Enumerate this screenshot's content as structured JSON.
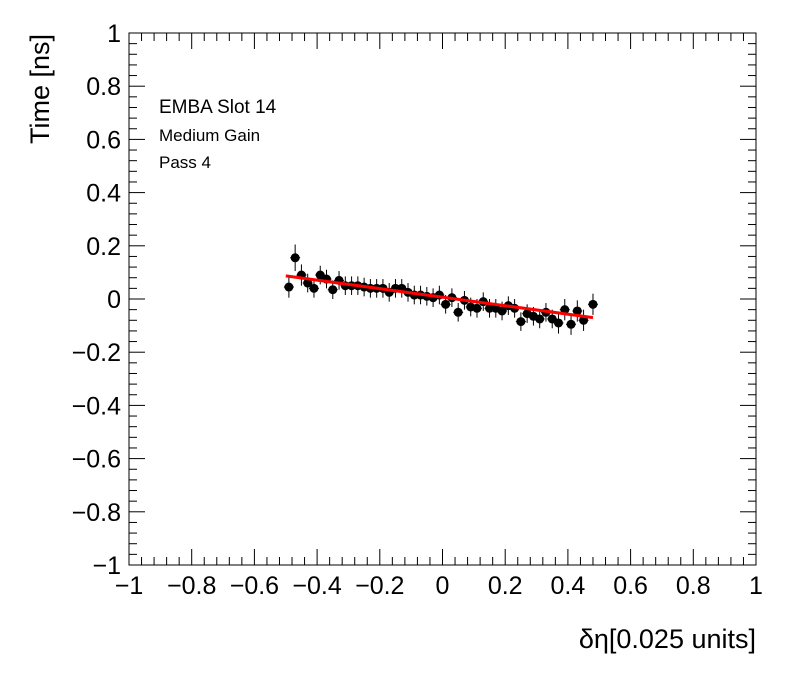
{
  "chart_data": {
    "type": "scatter",
    "annotations": [
      "EMBA Slot 14",
      "Medium Gain",
      "Pass 4"
    ],
    "xlabel": "δη[0.025 units]",
    "ylabel": "Time [ns]",
    "xlim": [
      -1,
      1
    ],
    "ylim": [
      -1,
      1
    ],
    "x_ticks": [
      "−1",
      "−0.8",
      "−0.6",
      "−0.4",
      "−0.2",
      "0",
      "0.2",
      "0.4",
      "0.6",
      "0.8",
      "1"
    ],
    "y_ticks": [
      "−1",
      "−0.8",
      "−0.6",
      "−0.4",
      "−0.2",
      "0",
      "0.2",
      "0.4",
      "0.6",
      "0.8",
      "1"
    ],
    "grid": false,
    "series": [
      {
        "marker_color": "#000000",
        "points": [
          {
            "x": -0.49,
            "y": 0.045,
            "err": 0.04
          },
          {
            "x": -0.47,
            "y": 0.155,
            "err": 0.05
          },
          {
            "x": -0.45,
            "y": 0.09,
            "err": 0.04
          },
          {
            "x": -0.43,
            "y": 0.06,
            "err": 0.035
          },
          {
            "x": -0.41,
            "y": 0.04,
            "err": 0.035
          },
          {
            "x": -0.39,
            "y": 0.09,
            "err": 0.035
          },
          {
            "x": -0.37,
            "y": 0.075,
            "err": 0.035
          },
          {
            "x": -0.35,
            "y": 0.035,
            "err": 0.035
          },
          {
            "x": -0.33,
            "y": 0.07,
            "err": 0.035
          },
          {
            "x": -0.31,
            "y": 0.05,
            "err": 0.035
          },
          {
            "x": -0.29,
            "y": 0.05,
            "err": 0.035
          },
          {
            "x": -0.27,
            "y": 0.05,
            "err": 0.035
          },
          {
            "x": -0.25,
            "y": 0.045,
            "err": 0.035
          },
          {
            "x": -0.23,
            "y": 0.04,
            "err": 0.035
          },
          {
            "x": -0.21,
            "y": 0.04,
            "err": 0.035
          },
          {
            "x": -0.19,
            "y": 0.04,
            "err": 0.035
          },
          {
            "x": -0.17,
            "y": 0.025,
            "err": 0.035
          },
          {
            "x": -0.15,
            "y": 0.04,
            "err": 0.035
          },
          {
            "x": -0.13,
            "y": 0.04,
            "err": 0.035
          },
          {
            "x": -0.11,
            "y": 0.025,
            "err": 0.035
          },
          {
            "x": -0.09,
            "y": 0.015,
            "err": 0.035
          },
          {
            "x": -0.07,
            "y": 0.015,
            "err": 0.035
          },
          {
            "x": -0.05,
            "y": 0.01,
            "err": 0.035
          },
          {
            "x": -0.03,
            "y": 0.005,
            "err": 0.035
          },
          {
            "x": -0.01,
            "y": 0.015,
            "err": 0.035
          },
          {
            "x": 0.01,
            "y": -0.02,
            "err": 0.035
          },
          {
            "x": 0.03,
            "y": 0.005,
            "err": 0.035
          },
          {
            "x": 0.05,
            "y": -0.05,
            "err": 0.035
          },
          {
            "x": 0.07,
            "y": -0.005,
            "err": 0.035
          },
          {
            "x": 0.09,
            "y": -0.03,
            "err": 0.035
          },
          {
            "x": 0.11,
            "y": -0.035,
            "err": 0.035
          },
          {
            "x": 0.13,
            "y": -0.01,
            "err": 0.035
          },
          {
            "x": 0.15,
            "y": -0.035,
            "err": 0.035
          },
          {
            "x": 0.17,
            "y": -0.035,
            "err": 0.035
          },
          {
            "x": 0.19,
            "y": -0.045,
            "err": 0.035
          },
          {
            "x": 0.21,
            "y": -0.025,
            "err": 0.035
          },
          {
            "x": 0.23,
            "y": -0.035,
            "err": 0.035
          },
          {
            "x": 0.25,
            "y": -0.085,
            "err": 0.035
          },
          {
            "x": 0.27,
            "y": -0.055,
            "err": 0.035
          },
          {
            "x": 0.29,
            "y": -0.065,
            "err": 0.035
          },
          {
            "x": 0.31,
            "y": -0.075,
            "err": 0.035
          },
          {
            "x": 0.33,
            "y": -0.05,
            "err": 0.035
          },
          {
            "x": 0.35,
            "y": -0.075,
            "err": 0.035
          },
          {
            "x": 0.37,
            "y": -0.09,
            "err": 0.04
          },
          {
            "x": 0.39,
            "y": -0.04,
            "err": 0.04
          },
          {
            "x": 0.41,
            "y": -0.095,
            "err": 0.04
          },
          {
            "x": 0.43,
            "y": -0.045,
            "err": 0.04
          },
          {
            "x": 0.45,
            "y": -0.08,
            "err": 0.04
          },
          {
            "x": 0.48,
            "y": -0.02,
            "err": 0.04
          }
        ]
      }
    ],
    "fit": {
      "type": "linear",
      "color": "#ff0000",
      "x": [
        -0.5,
        0.48
      ],
      "y": [
        0.087,
        -0.07
      ]
    }
  }
}
